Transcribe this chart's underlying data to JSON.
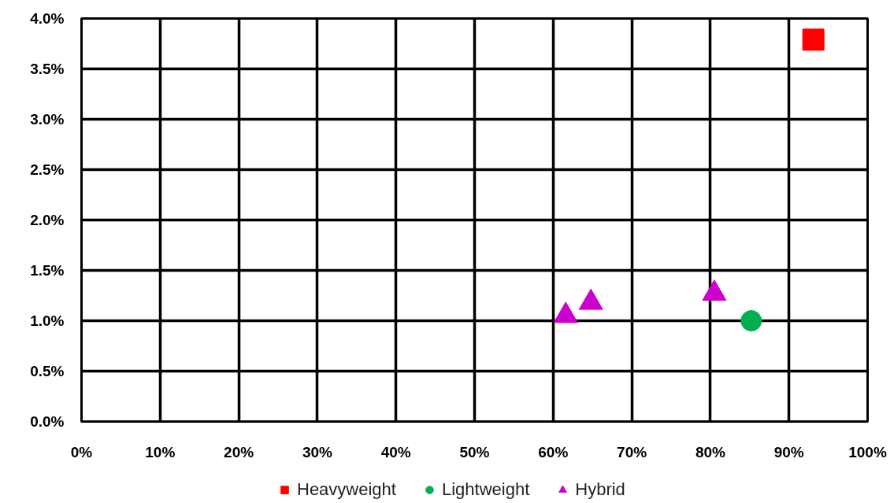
{
  "chart_data": {
    "type": "scatter",
    "series": [
      {
        "name": "Heavyweight",
        "color": "#ff0000",
        "marker": "square",
        "x": [
          93.1
        ],
        "values": [
          3.79
        ]
      },
      {
        "name": "Lightweight",
        "color": "#00b050",
        "marker": "circle",
        "x": [
          85.2
        ],
        "values": [
          1.0
        ]
      },
      {
        "name": "Hybrid",
        "color": "#cc00cc",
        "marker": "triangle",
        "x": [
          61.6,
          64.8,
          80.5
        ],
        "values": [
          1.05,
          1.18,
          1.27
        ]
      }
    ],
    "xlim": [
      0,
      100
    ],
    "xticks": [
      {
        "value": 0,
        "label": "0%"
      },
      {
        "value": 10,
        "label": "10%"
      },
      {
        "value": 20,
        "label": "20%"
      },
      {
        "value": 30,
        "label": "30%"
      },
      {
        "value": 40,
        "label": "40%"
      },
      {
        "value": 50,
        "label": "50%"
      },
      {
        "value": 60,
        "label": "60%"
      },
      {
        "value": 70,
        "label": "70%"
      },
      {
        "value": 80,
        "label": "80%"
      },
      {
        "value": 90,
        "label": "90%"
      },
      {
        "value": 100,
        "label": "100%"
      }
    ],
    "ylim": [
      0,
      4
    ],
    "yticks": [
      {
        "value": 0,
        "label": "0.0%"
      },
      {
        "value": 0.5,
        "label": "0.5%"
      },
      {
        "value": 1,
        "label": "1.0%"
      },
      {
        "value": 1.5,
        "label": "1.5%"
      },
      {
        "value": 2,
        "label": "2.0%"
      },
      {
        "value": 2.5,
        "label": "2.5%"
      },
      {
        "value": 3,
        "label": "3.0%"
      },
      {
        "value": 3.5,
        "label": "3.5%"
      },
      {
        "value": 4,
        "label": "4.0%"
      }
    ],
    "grid": true,
    "legend": "bottom"
  }
}
